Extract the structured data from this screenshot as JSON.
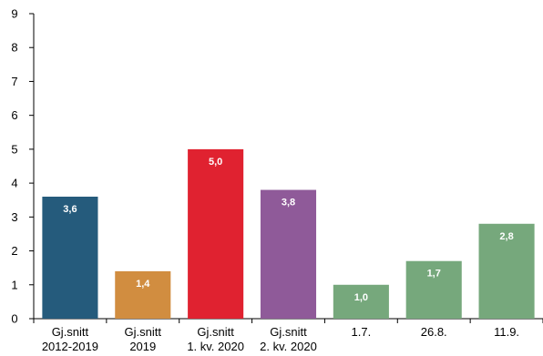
{
  "chart_data": {
    "type": "bar",
    "title": "",
    "xlabel": "",
    "ylabel": "",
    "ylim": [
      0,
      9
    ],
    "yticks": [
      0,
      1,
      2,
      3,
      4,
      5,
      6,
      7,
      8,
      9
    ],
    "grid": false,
    "categories": [
      [
        "Gj.snitt",
        "2012-2019"
      ],
      [
        "Gj.snitt",
        "2019"
      ],
      [
        "Gj.snitt",
        "1. kv. 2020"
      ],
      [
        "Gj.snitt",
        "2. kv. 2020"
      ],
      [
        "1.7."
      ],
      [
        "26.8."
      ],
      [
        "11.9."
      ]
    ],
    "values": [
      3.6,
      1.4,
      5.0,
      3.8,
      1.0,
      1.7,
      2.8
    ],
    "data_labels": [
      "3,6",
      "1,4",
      "5,0",
      "3,8",
      "1,0",
      "1,7",
      "2,8"
    ],
    "colors": [
      "#255b7c",
      "#d18d40",
      "#e02230",
      "#8f5a99",
      "#76a87c",
      "#76a87c",
      "#76a87c"
    ]
  }
}
